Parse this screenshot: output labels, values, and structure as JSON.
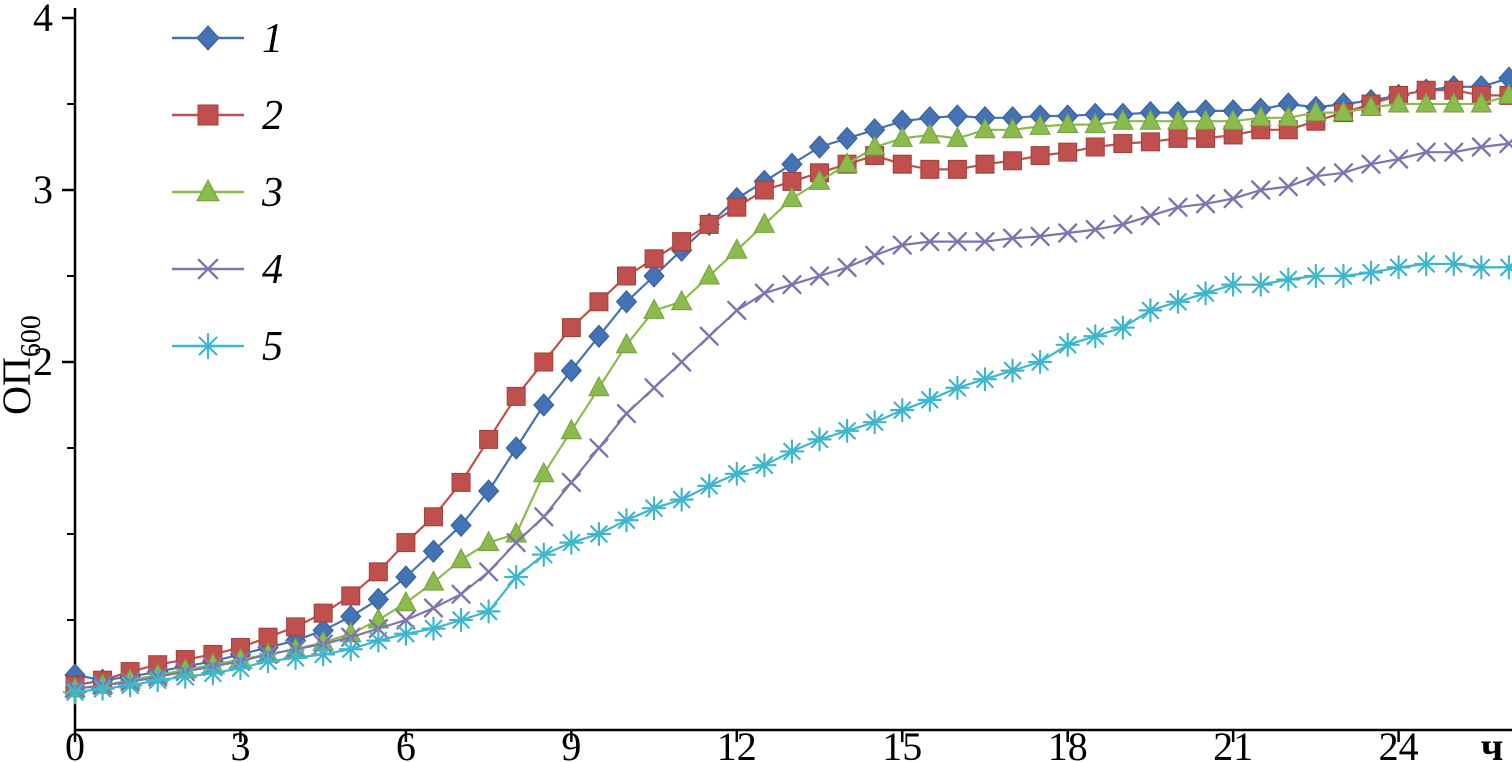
{
  "chart_data": {
    "type": "line",
    "title": "",
    "xlabel": "ч",
    "ylabel": "ОП",
    "ylabel_sub": "600",
    "xlim": [
      0,
      26
    ],
    "ylim": [
      0,
      4
    ],
    "grid": false,
    "legend_position": "top-left",
    "x_ticks": [
      0,
      3,
      6,
      9,
      12,
      15,
      18,
      21,
      24
    ],
    "y_ticks_labeled": [
      2,
      3,
      4
    ],
    "y_ticks_minor": [
      0.5,
      1,
      1.5,
      2.5,
      3.5
    ],
    "x_start": 0,
    "x_step": 0.5,
    "series": [
      {
        "name": "1",
        "marker": "diamond",
        "color": "#4472b4",
        "values": [
          0.18,
          0.15,
          0.17,
          0.2,
          0.23,
          0.26,
          0.3,
          0.34,
          0.38,
          0.44,
          0.52,
          0.62,
          0.75,
          0.9,
          1.05,
          1.25,
          1.5,
          1.75,
          1.95,
          2.15,
          2.35,
          2.5,
          2.65,
          2.8,
          2.95,
          3.05,
          3.15,
          3.25,
          3.3,
          3.35,
          3.4,
          3.42,
          3.43,
          3.42,
          3.42,
          3.43,
          3.43,
          3.44,
          3.44,
          3.45,
          3.45,
          3.46,
          3.46,
          3.47,
          3.5,
          3.48,
          3.5,
          3.52,
          3.55,
          3.58,
          3.6,
          3.6,
          3.65
        ]
      },
      {
        "name": "2",
        "marker": "square",
        "color": "#c0504d",
        "values": [
          0.12,
          0.15,
          0.2,
          0.24,
          0.27,
          0.3,
          0.34,
          0.4,
          0.46,
          0.54,
          0.64,
          0.78,
          0.95,
          1.1,
          1.3,
          1.55,
          1.8,
          2.0,
          2.2,
          2.35,
          2.5,
          2.6,
          2.7,
          2.8,
          2.9,
          3.0,
          3.05,
          3.1,
          3.15,
          3.2,
          3.15,
          3.12,
          3.12,
          3.15,
          3.17,
          3.2,
          3.22,
          3.25,
          3.27,
          3.28,
          3.3,
          3.3,
          3.32,
          3.35,
          3.35,
          3.4,
          3.45,
          3.5,
          3.55,
          3.58,
          3.58,
          3.55,
          3.55
        ]
      },
      {
        "name": "3",
        "marker": "triangle",
        "color": "#8bbb4d",
        "values": [
          0.1,
          0.12,
          0.15,
          0.18,
          0.21,
          0.24,
          0.27,
          0.3,
          0.33,
          0.37,
          0.42,
          0.5,
          0.6,
          0.72,
          0.85,
          0.95,
          1.0,
          1.35,
          1.6,
          1.85,
          2.1,
          2.3,
          2.35,
          2.5,
          2.65,
          2.8,
          2.95,
          3.05,
          3.15,
          3.25,
          3.3,
          3.32,
          3.3,
          3.35,
          3.35,
          3.37,
          3.38,
          3.38,
          3.4,
          3.4,
          3.4,
          3.4,
          3.4,
          3.42,
          3.42,
          3.45,
          3.45,
          3.48,
          3.5,
          3.5,
          3.5,
          3.5,
          3.55
        ]
      },
      {
        "name": "4",
        "marker": "x",
        "color": "#8172b0",
        "values": [
          0.1,
          0.12,
          0.14,
          0.17,
          0.2,
          0.23,
          0.26,
          0.3,
          0.33,
          0.36,
          0.4,
          0.45,
          0.5,
          0.57,
          0.65,
          0.78,
          0.95,
          1.1,
          1.3,
          1.5,
          1.7,
          1.85,
          2.0,
          2.15,
          2.3,
          2.4,
          2.45,
          2.5,
          2.55,
          2.62,
          2.68,
          2.7,
          2.7,
          2.7,
          2.72,
          2.73,
          2.75,
          2.77,
          2.8,
          2.85,
          2.9,
          2.92,
          2.95,
          3.0,
          3.02,
          3.08,
          3.1,
          3.15,
          3.18,
          3.22,
          3.22,
          3.25,
          3.27
        ]
      },
      {
        "name": "5",
        "marker": "asterisk",
        "color": "#3eb6cc",
        "values": [
          0.08,
          0.1,
          0.12,
          0.15,
          0.17,
          0.19,
          0.22,
          0.26,
          0.28,
          0.3,
          0.33,
          0.38,
          0.42,
          0.45,
          0.5,
          0.55,
          0.75,
          0.88,
          0.95,
          1.0,
          1.08,
          1.15,
          1.2,
          1.28,
          1.35,
          1.4,
          1.48,
          1.55,
          1.6,
          1.65,
          1.72,
          1.78,
          1.85,
          1.9,
          1.95,
          2.0,
          2.1,
          2.15,
          2.2,
          2.3,
          2.35,
          2.4,
          2.45,
          2.45,
          2.48,
          2.5,
          2.5,
          2.52,
          2.55,
          2.57,
          2.57,
          2.55,
          2.55
        ]
      }
    ]
  }
}
